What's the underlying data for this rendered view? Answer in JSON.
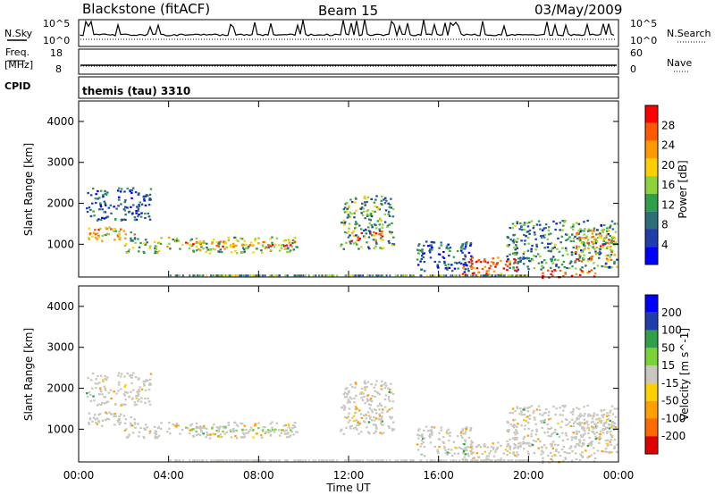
{
  "header": {
    "station": "Blackstone (fitACF)",
    "beam": "Beam 15",
    "date": "03/May/2009"
  },
  "strip_nsky": {
    "left_label": "N.Sky",
    "left_ticks": [
      "10^5",
      "10^0"
    ],
    "right_label": "N.Search",
    "right_ticks": [
      "10^5",
      "10^0"
    ]
  },
  "strip_freq": {
    "left_label_1": "Freq.",
    "left_label_2": "[MHz]",
    "left_ticks": [
      "18",
      "8"
    ],
    "right_label": "Nave",
    "right_ticks": [
      "60",
      "0"
    ]
  },
  "strip_cpid": {
    "left_label": "CPID",
    "value": "themis (tau) 3310"
  },
  "colors": {
    "power_scale": [
      "#0000ff",
      "#1e3faa",
      "#2e6e7a",
      "#2f9f4a",
      "#8fd13a",
      "#ffd000",
      "#ff9a00",
      "#ff5a00",
      "#ff0000"
    ],
    "velocity_scale": [
      "#e00000",
      "#ff6a00",
      "#ffa000",
      "#ffd000",
      "#c8c8c0",
      "#7bd13a",
      "#2f9f4a",
      "#1e3faa",
      "#0000ff"
    ],
    "ground_scatter": "#c8c8c0"
  },
  "chart_data": [
    {
      "type": "heatmap",
      "name_panel": "power",
      "ylabel": "Slant Range [km]",
      "y_ticks": [
        "1000",
        "2000",
        "3000",
        "4000"
      ],
      "ylim": [
        200,
        4500
      ],
      "xlim": [
        0,
        24
      ],
      "colorbar_label": "Power [dB]",
      "colorbar_ticks": [
        "4",
        "8",
        "12",
        "16",
        "20",
        "24",
        "28"
      ],
      "colorbar_range": [
        0,
        30
      ],
      "regions": [
        {
          "t0": 0.2,
          "t1": 2.5,
          "r0": 1100,
          "r1": 1450,
          "value": 20
        },
        {
          "t0": 0.3,
          "t1": 3.2,
          "r0": 1600,
          "r1": 2400,
          "value": 6
        },
        {
          "t0": 2.0,
          "t1": 9.8,
          "r0": 800,
          "r1": 1200,
          "value": 14
        },
        {
          "t0": 4.5,
          "t1": 9.6,
          "r0": 950,
          "r1": 1100,
          "value": 22
        },
        {
          "t0": 11.6,
          "t1": 14.0,
          "r0": 900,
          "r1": 2200,
          "value": 12
        },
        {
          "t0": 12.0,
          "t1": 13.5,
          "r0": 1100,
          "r1": 1350,
          "value": 24
        },
        {
          "t0": 15.0,
          "t1": 17.5,
          "r0": 300,
          "r1": 1100,
          "value": 5
        },
        {
          "t0": 17.0,
          "t1": 19.5,
          "r0": 250,
          "r1": 700,
          "value": 26
        },
        {
          "t0": 19.0,
          "t1": 23.9,
          "r0": 400,
          "r1": 1600,
          "value": 10
        },
        {
          "t0": 20.5,
          "t1": 23.0,
          "r0": 200,
          "r1": 400,
          "value": 28
        },
        {
          "t0": 22.0,
          "t1": 23.9,
          "r0": 600,
          "r1": 1400,
          "value": 20
        }
      ]
    },
    {
      "type": "heatmap",
      "name_panel": "velocity",
      "ylabel": "Slant Range [km]",
      "y_ticks": [
        "1000",
        "2000",
        "3000",
        "4000"
      ],
      "ylim": [
        200,
        4500
      ],
      "xlim": [
        0,
        24
      ],
      "xlabel": "Time UT",
      "x_ticks": [
        "00:00",
        "04:00",
        "08:00",
        "12:00",
        "16:00",
        "20:00",
        "00:00"
      ],
      "colorbar_label": "Velocity [m s^-1]",
      "colorbar_ticks": [
        "200",
        "100",
        "50",
        "15",
        "-15",
        "-50",
        "-100",
        "-200"
      ],
      "colorbar_range": [
        -250,
        250
      ]
    }
  ]
}
